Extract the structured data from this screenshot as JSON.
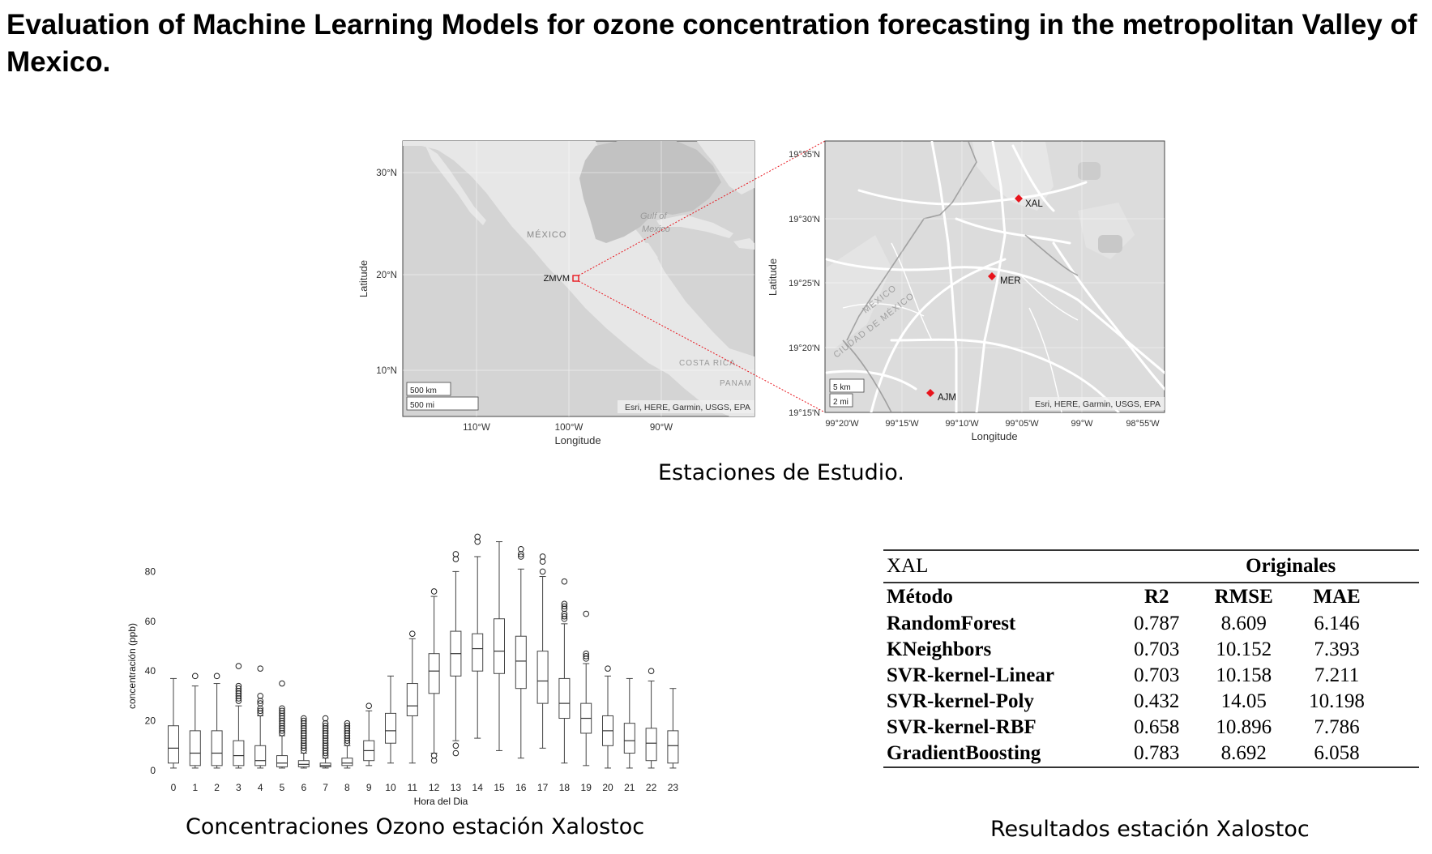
{
  "title": "Evaluation of Machine Learning Models for ozone concentration forecasting in the metropolitan Valley of Mexico.",
  "map_figure": {
    "left_map": {
      "lat_ticks": [
        "30°N",
        "20°N",
        "10°N"
      ],
      "lon_ticks": [
        "110°W",
        "100°W",
        "90°W"
      ],
      "xlabel": "Longitude",
      "ylabel": "Latitude",
      "labels": {
        "mexico": "MÉXICO",
        "gulf1": "Gulf of",
        "gulf2": "Mexico",
        "costa_rica": "COSTA RICA",
        "panama": "PANAM"
      },
      "marker_label": "ZMVM",
      "scale_km": "500 km",
      "scale_mi": "500 mi",
      "attribution": "Esri, HERE, Garmin, USGS, EPA"
    },
    "right_map": {
      "lat_ticks": [
        "19°35'N",
        "19°30'N",
        "19°25'N",
        "19°20'N",
        "19°15'N"
      ],
      "lon_ticks": [
        "99°20'W",
        "99°15'W",
        "99°10'W",
        "99°05'W",
        "99°W",
        "98°55'W"
      ],
      "xlabel": "Longitude",
      "ylabel": "Latitude",
      "stations": [
        "XAL",
        "MER",
        "AJM"
      ],
      "region_labels": [
        "MÉXICO",
        "CIUDAD DE MÉXICO"
      ],
      "scale_km": "5 km",
      "scale_mi": "2 mi",
      "attribution": "Esri, HERE, Garmin, USGS, EPA"
    },
    "marker_color": "#e8141c"
  },
  "captions": {
    "map": "Estaciones de Estudio.",
    "boxplot": "Concentraciones Ozono estación Xalostoc",
    "table": "Resultados estación Xalostoc"
  },
  "chart_data": {
    "type": "box",
    "xlabel": "Hora del Dia",
    "ylabel": "concentración (ppb)",
    "ylim": [
      0,
      90
    ],
    "yticks": [
      0,
      20,
      40,
      60,
      80
    ],
    "categories": [
      "0",
      "1",
      "2",
      "3",
      "4",
      "5",
      "6",
      "7",
      "8",
      "9",
      "10",
      "11",
      "12",
      "13",
      "14",
      "15",
      "16",
      "17",
      "18",
      "19",
      "20",
      "21",
      "22",
      "23"
    ],
    "boxes": [
      {
        "whislo": 1,
        "q1": 3,
        "med": 9,
        "q3": 18,
        "whishi": 37,
        "fliers": []
      },
      {
        "whislo": 1,
        "q1": 2,
        "med": 7,
        "q3": 16,
        "whishi": 34,
        "fliers": [
          38
        ]
      },
      {
        "whislo": 1,
        "q1": 2,
        "med": 7,
        "q3": 16,
        "whishi": 35,
        "fliers": [
          38
        ]
      },
      {
        "whislo": 1,
        "q1": 2,
        "med": 6,
        "q3": 12,
        "whishi": 26,
        "fliers": [
          28,
          29,
          30,
          31,
          32,
          33,
          34,
          42
        ]
      },
      {
        "whislo": 1,
        "q1": 2,
        "med": 4,
        "q3": 10,
        "whishi": 22,
        "fliers": [
          23,
          24,
          25,
          27,
          28,
          30,
          41
        ]
      },
      {
        "whislo": 1,
        "q1": 1.5,
        "med": 3,
        "q3": 6,
        "whishi": 14,
        "fliers": [
          15,
          16,
          17,
          18,
          19,
          20,
          21,
          22,
          23,
          24,
          25,
          35
        ]
      },
      {
        "whislo": 1,
        "q1": 1.5,
        "med": 2.5,
        "q3": 4,
        "whishi": 7,
        "fliers": [
          8,
          9,
          10,
          11,
          12,
          13,
          14,
          15,
          16,
          17,
          18,
          19,
          20,
          21
        ]
      },
      {
        "whislo": 1,
        "q1": 1.5,
        "med": 2,
        "q3": 3,
        "whishi": 5,
        "fliers": [
          6,
          7,
          8,
          9,
          10,
          11,
          12,
          13,
          14,
          15,
          16,
          17,
          18,
          19,
          21
        ]
      },
      {
        "whislo": 1,
        "q1": 2,
        "med": 3,
        "q3": 5,
        "whishi": 10,
        "fliers": [
          11,
          12,
          13,
          14,
          15,
          16,
          17,
          18,
          19
        ]
      },
      {
        "whislo": 2,
        "q1": 4,
        "med": 8,
        "q3": 12,
        "whishi": 24,
        "fliers": [
          26
        ]
      },
      {
        "whislo": 3,
        "q1": 11,
        "med": 16,
        "q3": 23,
        "whishi": 38,
        "fliers": []
      },
      {
        "whislo": 3,
        "q1": 22,
        "med": 26,
        "q3": 35,
        "whishi": 53,
        "fliers": [
          55
        ]
      },
      {
        "whislo": 7,
        "q1": 31,
        "med": 40,
        "q3": 47,
        "whishi": 70,
        "fliers": [
          4,
          6,
          72
        ]
      },
      {
        "whislo": 12,
        "q1": 38,
        "med": 47,
        "q3": 56,
        "whishi": 80,
        "fliers": [
          7,
          10,
          85,
          87
        ]
      },
      {
        "whislo": 13,
        "q1": 40,
        "med": 49,
        "q3": 55,
        "whishi": 86,
        "fliers": [
          92,
          94
        ]
      },
      {
        "whislo": 8,
        "q1": 39,
        "med": 48,
        "q3": 61,
        "whishi": 92,
        "fliers": []
      },
      {
        "whislo": 5,
        "q1": 33,
        "med": 44,
        "q3": 54,
        "whishi": 81,
        "fliers": [
          86,
          87,
          89
        ]
      },
      {
        "whislo": 9,
        "q1": 27,
        "med": 36,
        "q3": 48,
        "whishi": 78,
        "fliers": [
          80,
          84,
          86
        ]
      },
      {
        "whislo": 3,
        "q1": 21,
        "med": 27,
        "q3": 37,
        "whishi": 59,
        "fliers": [
          61,
          62,
          63,
          65,
          66,
          67,
          76
        ]
      },
      {
        "whislo": 2,
        "q1": 15,
        "med": 21,
        "q3": 27,
        "whishi": 43,
        "fliers": [
          45,
          46,
          47,
          63
        ]
      },
      {
        "whislo": 1,
        "q1": 10,
        "med": 16,
        "q3": 22,
        "whishi": 38,
        "fliers": [
          41
        ]
      },
      {
        "whislo": 1,
        "q1": 7,
        "med": 12,
        "q3": 19,
        "whishi": 37,
        "fliers": []
      },
      {
        "whislo": 1,
        "q1": 4,
        "med": 11,
        "q3": 17,
        "whishi": 36,
        "fliers": [
          40
        ]
      },
      {
        "whislo": 1,
        "q1": 3,
        "med": 10,
        "q3": 16,
        "whishi": 33,
        "fliers": []
      }
    ]
  },
  "results_table": {
    "station": "XAL",
    "group": "Originales",
    "headers": [
      "Método",
      "R2",
      "RMSE",
      "MAE"
    ],
    "rows": [
      [
        "RandomForest",
        "0.787",
        "8.609",
        "6.146"
      ],
      [
        "KNeighbors",
        "0.703",
        "10.152",
        "7.393"
      ],
      [
        "SVR-kernel-Linear",
        "0.703",
        "10.158",
        "7.211"
      ],
      [
        "SVR-kernel-Poly",
        "0.432",
        "14.05",
        "10.198"
      ],
      [
        "SVR-kernel-RBF",
        "0.658",
        "10.896",
        "7.786"
      ],
      [
        "GradientBoosting",
        "0.783",
        "8.692",
        "6.058"
      ]
    ]
  }
}
